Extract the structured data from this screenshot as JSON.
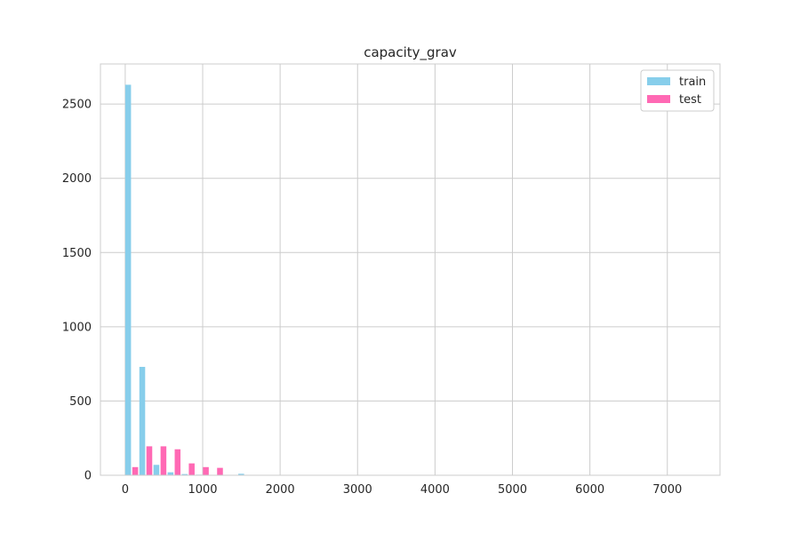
{
  "chart_data": {
    "type": "bar",
    "title": "capacity_grav",
    "xlabel": "",
    "ylabel": "",
    "xlim": [
      -320,
      7680
    ],
    "ylim": [
      0,
      2770
    ],
    "grid": true,
    "legend_position": "top-right",
    "x_ticks": [
      0,
      1000,
      2000,
      3000,
      4000,
      5000,
      6000,
      7000
    ],
    "y_ticks": [
      0,
      500,
      1000,
      1500,
      2000,
      2500
    ],
    "bin_width": 182.5,
    "bin_starts": [
      0,
      182.5,
      365,
      547.5,
      730,
      912.5,
      1095,
      1277.5,
      1460,
      1642.5,
      1825,
      2007.5
    ],
    "series": [
      {
        "name": "train",
        "color": "#87ceeb",
        "values": [
          2630,
          730,
          70,
          20,
          8,
          4,
          3,
          2,
          10,
          1,
          1,
          0
        ]
      },
      {
        "name": "test",
        "color": "#ff69b4",
        "values": [
          55,
          195,
          195,
          175,
          80,
          55,
          50,
          0,
          0,
          0,
          0,
          0
        ]
      }
    ]
  }
}
